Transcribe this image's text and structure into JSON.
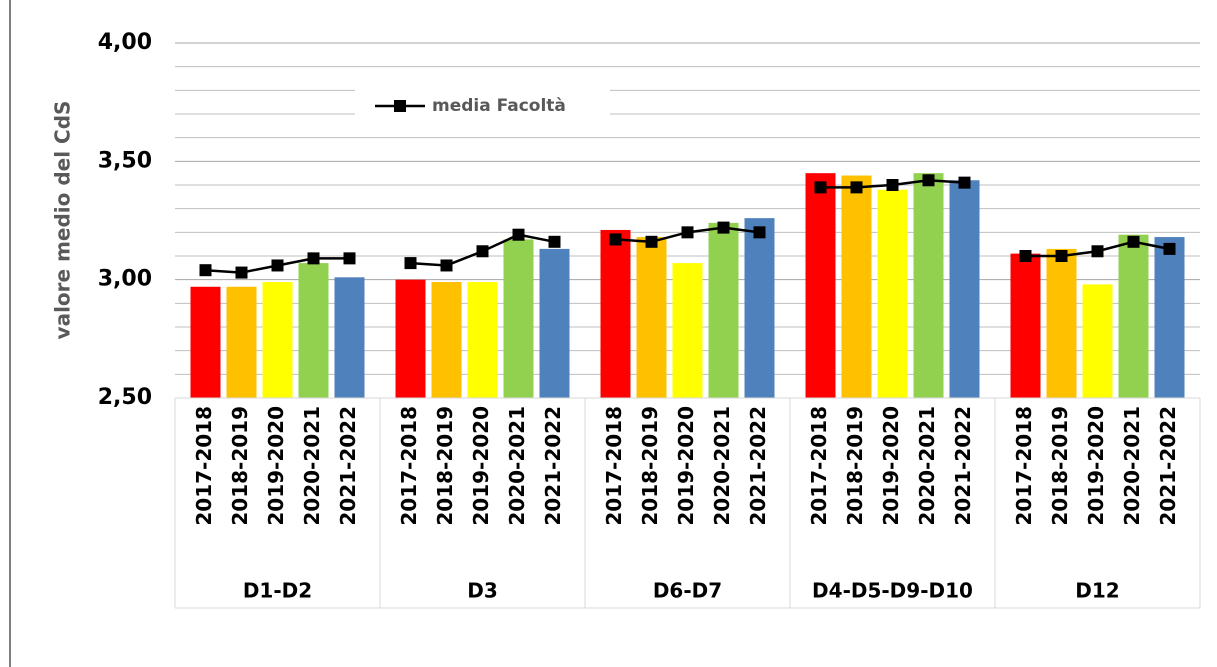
{
  "chart_data": {
    "type": "bar",
    "y_label": "valore medio del CdS",
    "groups": [
      "D1-D2",
      "D3",
      "D6-D7",
      "D4-D5-D9-D10",
      "D12"
    ],
    "categories": [
      "2017-2018",
      "2018-2019",
      "2019-2020",
      "2020-2021",
      "2021-2022"
    ],
    "series": [
      {
        "name": "2017-2018",
        "color": "#ff0000",
        "values": [
          2.97,
          3.0,
          3.21,
          3.45,
          3.11
        ]
      },
      {
        "name": "2018-2019",
        "color": "#ffc000",
        "values": [
          2.97,
          2.99,
          3.18,
          3.44,
          3.13
        ]
      },
      {
        "name": "2019-2020",
        "color": "#ffff00",
        "values": [
          2.99,
          2.99,
          3.07,
          3.38,
          2.98
        ]
      },
      {
        "name": "2020-2021",
        "color": "#92d050",
        "values": [
          3.07,
          3.17,
          3.24,
          3.45,
          3.19
        ]
      },
      {
        "name": "2021-2022",
        "color": "#4f81bd",
        "values": [
          3.01,
          3.13,
          3.26,
          3.42,
          3.18
        ]
      }
    ],
    "line": {
      "name": "media Facoltà",
      "color": "#000000",
      "values": [
        [
          3.04,
          3.03,
          3.06,
          3.09,
          3.09
        ],
        [
          3.07,
          3.06,
          3.12,
          3.19,
          3.16
        ],
        [
          3.17,
          3.16,
          3.2,
          3.22,
          3.2
        ],
        [
          3.39,
          3.39,
          3.4,
          3.42,
          3.41
        ],
        [
          3.1,
          3.1,
          3.12,
          3.16,
          3.13
        ]
      ]
    },
    "ylim": [
      2.5,
      4.0
    ],
    "yticks": [
      {
        "value": 2.5,
        "label": "2,50"
      },
      {
        "value": 3.0,
        "label": "3,00"
      },
      {
        "value": 3.5,
        "label": "3,50"
      },
      {
        "value": 4.0,
        "label": "4,00"
      }
    ],
    "minor_yticks": [
      2.6,
      2.7,
      2.8,
      2.9,
      3.1,
      3.2,
      3.3,
      3.4,
      3.6,
      3.7,
      3.8,
      3.9
    ],
    "grid": true,
    "legend": "top"
  }
}
